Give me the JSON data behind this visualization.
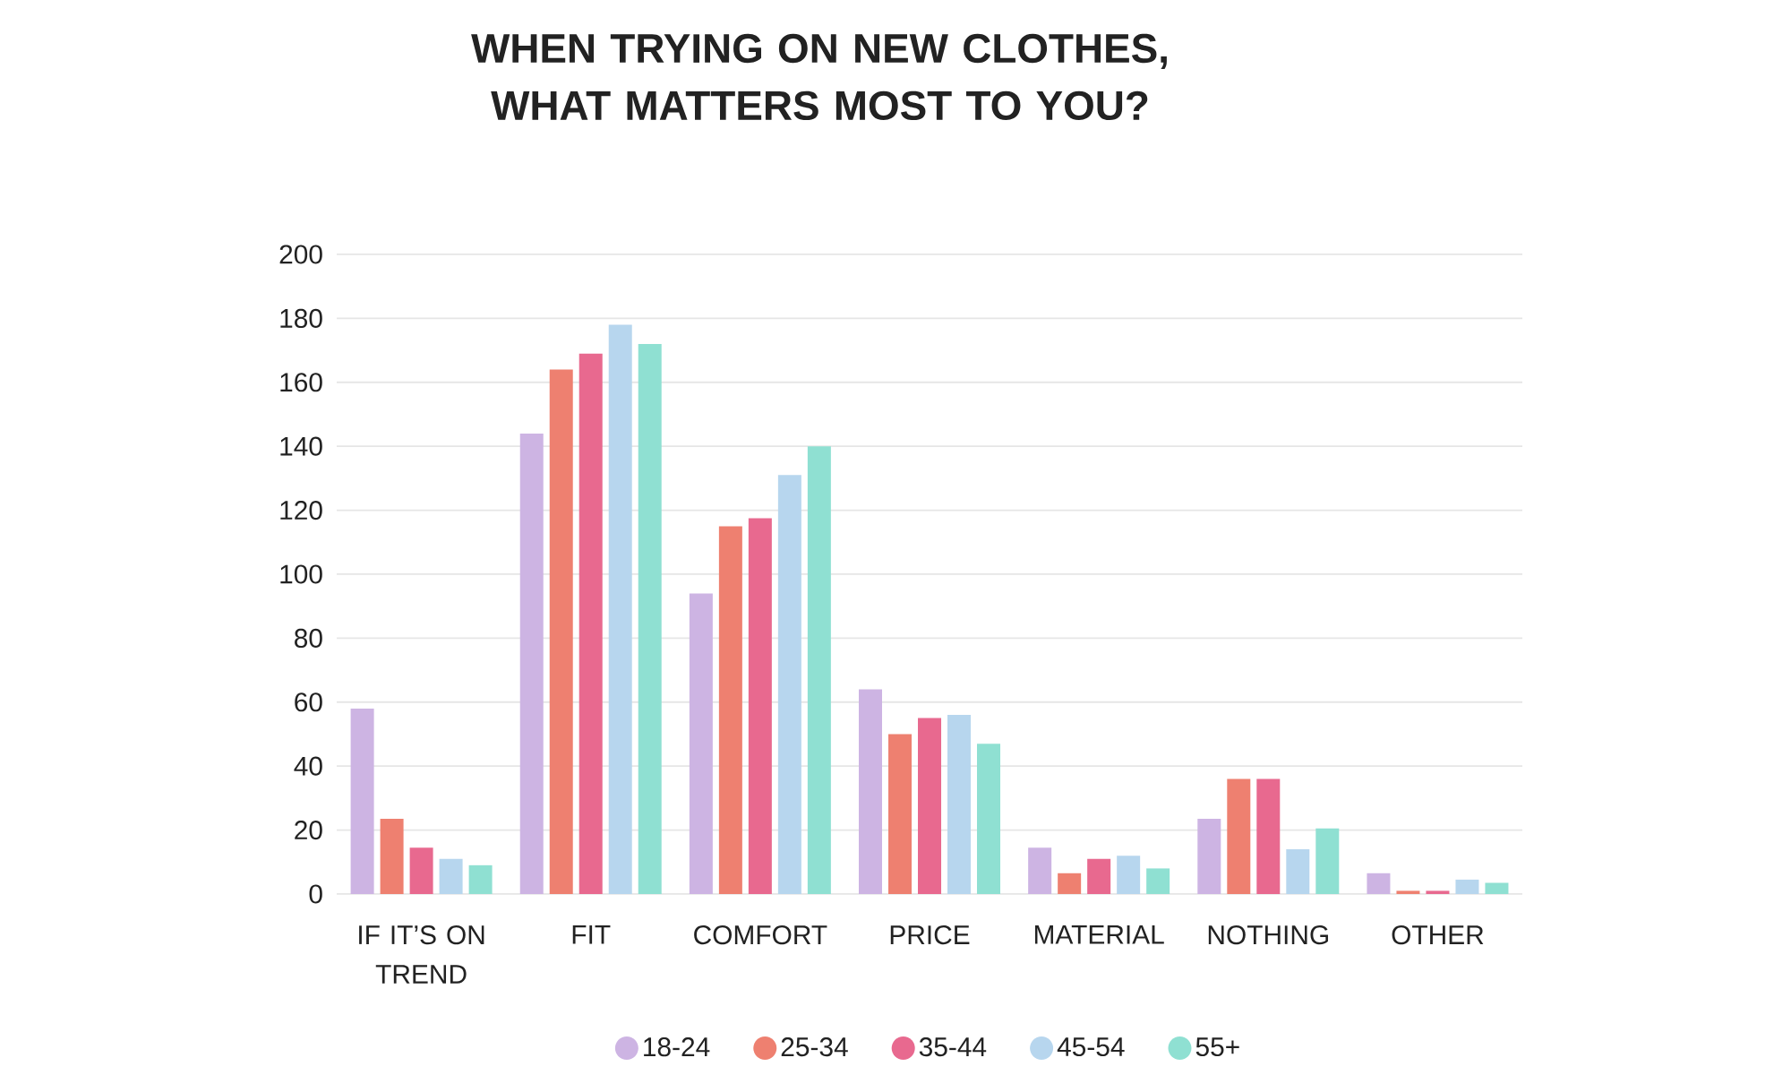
{
  "chart_data": {
    "type": "bar",
    "title": "WHEN TRYING ON NEW CLOTHES, WHAT MATTERS MOST TO YOU?",
    "categories": [
      "IF IT’S ON TREND",
      "FIT",
      "COMFORT",
      "PRICE",
      "MATERIAL",
      "NOTHING",
      "OTHER"
    ],
    "series": [
      {
        "name": "18-24",
        "color": "#cdb4e3",
        "values": [
          58,
          144,
          94,
          64,
          14.5,
          23.5,
          6.5
        ]
      },
      {
        "name": "25-34",
        "color": "#ee8070",
        "values": [
          23.5,
          164,
          115,
          50,
          6.5,
          36,
          1
        ]
      },
      {
        "name": "35-44",
        "color": "#e8698f",
        "values": [
          14.5,
          169,
          117.5,
          55,
          11,
          36,
          1
        ]
      },
      {
        "name": "45-54",
        "color": "#b7d6ee",
        "values": [
          11,
          178,
          131,
          56,
          12,
          14,
          4.5
        ]
      },
      {
        "name": "55+",
        "color": "#8fe0d2",
        "values": [
          9,
          172,
          140,
          47,
          8,
          20.5,
          3.5
        ]
      }
    ],
    "ylim": [
      0,
      200
    ],
    "yticks": [
      0,
      20,
      40,
      60,
      80,
      100,
      120,
      140,
      160,
      180,
      200
    ],
    "grid": "y",
    "legend": "bottom"
  }
}
